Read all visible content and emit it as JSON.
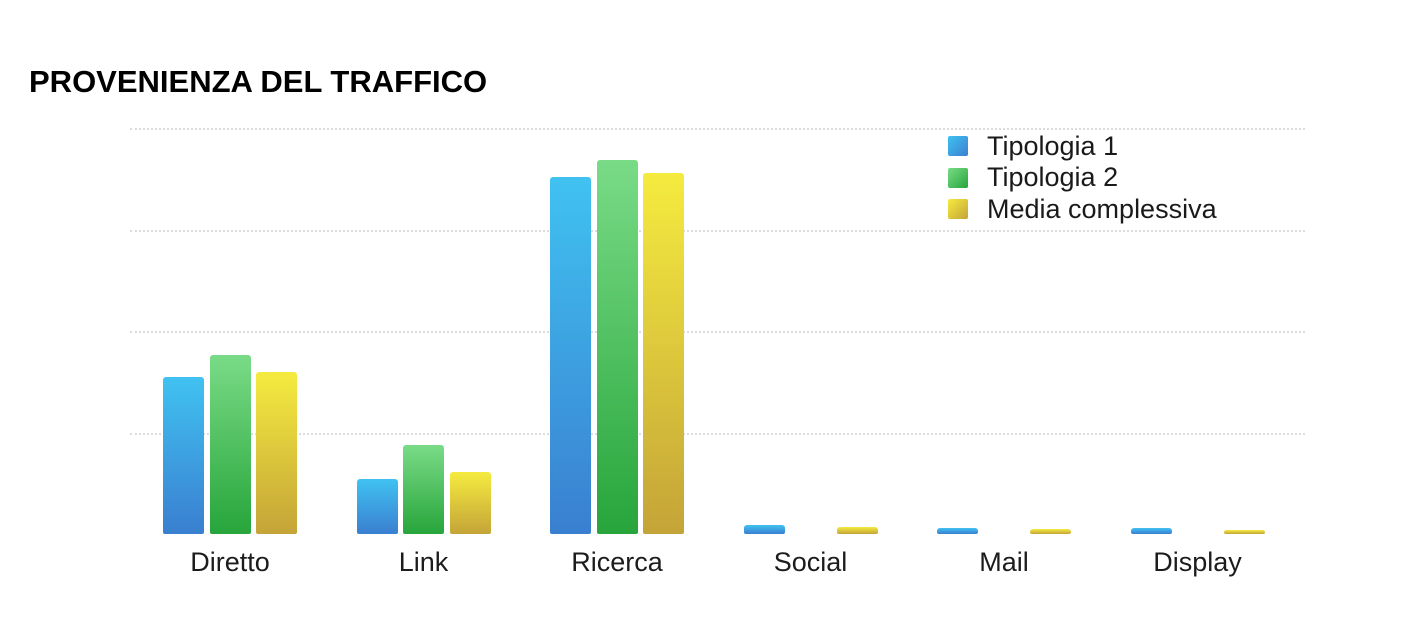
{
  "title": "PROVENIENZA DEL TRAFFICO",
  "chart_data": {
    "type": "bar",
    "title": "PROVENIENZA DEL TRAFFICO",
    "categories": [
      "Diretto",
      "Link",
      "Ricerca",
      "Social",
      "Mail",
      "Display"
    ],
    "series": [
      {
        "name": "Tipologia 1",
        "values": [
          15.5,
          5.4,
          35.2,
          0.9,
          0.55,
          0.55
        ]
      },
      {
        "name": "Tipologia 2",
        "values": [
          17.6,
          8.8,
          36.9,
          0,
          0,
          0
        ]
      },
      {
        "name": "Media complessiva",
        "values": [
          16.0,
          6.1,
          35.6,
          0.65,
          0.5,
          0.35
        ]
      }
    ],
    "xlabel": "",
    "ylabel": "",
    "ylim": [
      0,
      40
    ],
    "gridlines": [
      10,
      20,
      30,
      40
    ],
    "grid_style": "dotted",
    "y_tick_labels_visible": false,
    "legend_position": "top-right",
    "legend_entries": [
      "Tipologia 1",
      "Tipologia 2",
      "Media complessiva"
    ]
  },
  "colors": {
    "series": [
      {
        "name": "Tipologia 1",
        "top": "#40C2F1",
        "bottom": "#3A7FD0"
      },
      {
        "name": "Tipologia 2",
        "top": "#7ADB87",
        "bottom": "#27A53B"
      },
      {
        "name": "Media complessiva",
        "top": "#F5EB3F",
        "bottom": "#C4A438"
      }
    ],
    "gridline": "#dcdcdc",
    "title_text": "#000000",
    "label_text": "#1c1c1c",
    "background": "#ffffff"
  }
}
